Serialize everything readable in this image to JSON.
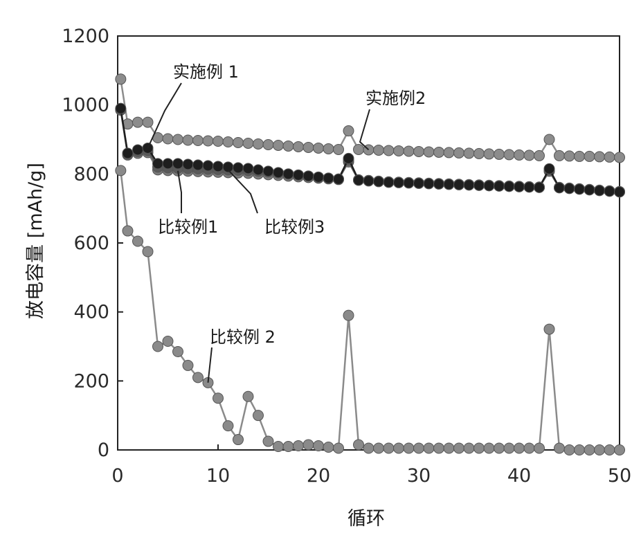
{
  "chart_data": {
    "type": "line",
    "xlabel": "循环",
    "ylabel": "放电容量 [mAh/g]",
    "xlim": [
      0,
      50
    ],
    "ylim": [
      0,
      1200
    ],
    "xticks": [
      "0",
      "10",
      "20",
      "30",
      "40",
      "50"
    ],
    "yticks": [
      "0",
      "200",
      "400",
      "600",
      "800",
      "1000",
      "1200"
    ],
    "grid": false,
    "legend": "none",
    "series": [
      {
        "name": "实施例 1",
        "color": "#1e1e1e",
        "x": [
          0.3,
          1,
          2,
          3,
          4,
          5,
          6,
          7,
          8,
          9,
          10,
          11,
          12,
          13,
          14,
          15,
          16,
          17,
          18,
          19,
          20,
          21,
          22,
          23,
          24,
          25,
          26,
          27,
          28,
          29,
          30,
          31,
          32,
          33,
          34,
          35,
          36,
          37,
          38,
          39,
          40,
          41,
          42,
          43,
          44,
          45,
          46,
          47,
          48,
          49,
          50
        ],
        "y": [
          990,
          860,
          870,
          875,
          830,
          830,
          830,
          828,
          826,
          824,
          822,
          820,
          818,
          816,
          812,
          808,
          804,
          800,
          797,
          794,
          791,
          788,
          785,
          845,
          782,
          780,
          778,
          776,
          775,
          774,
          773,
          772,
          771,
          770,
          769,
          768,
          767,
          766,
          765,
          764,
          763,
          762,
          761,
          815,
          760,
          758,
          756,
          754,
          752,
          750,
          748
        ]
      },
      {
        "name": "实施例2",
        "color": "#8c8c8c",
        "x": [
          0.3,
          1,
          2,
          3,
          4,
          5,
          6,
          7,
          8,
          9,
          10,
          11,
          12,
          13,
          14,
          15,
          16,
          17,
          18,
          19,
          20,
          21,
          22,
          23,
          24,
          25,
          26,
          27,
          28,
          29,
          30,
          31,
          32,
          33,
          34,
          35,
          36,
          37,
          38,
          39,
          40,
          41,
          42,
          43,
          44,
          45,
          46,
          47,
          48,
          49,
          50
        ],
        "y": [
          1075,
          945,
          950,
          950,
          905,
          902,
          900,
          898,
          897,
          896,
          895,
          893,
          891,
          889,
          887,
          885,
          883,
          881,
          879,
          877,
          875,
          873,
          871,
          925,
          871,
          870,
          869,
          868,
          867,
          866,
          865,
          864,
          863,
          862,
          861,
          860,
          859,
          858,
          857,
          856,
          855,
          854,
          853,
          900,
          853,
          852,
          851,
          851,
          850,
          849,
          848
        ]
      },
      {
        "name": "比较例1",
        "color": "#7a7a7a",
        "x": [
          0.3,
          1,
          2,
          3,
          4,
          5,
          6,
          7,
          8,
          9,
          10,
          11,
          12,
          13,
          14,
          15,
          16,
          17,
          18,
          19,
          20,
          21,
          22,
          23,
          24,
          25,
          26,
          27,
          28,
          29,
          30,
          31,
          32,
          33,
          34,
          35,
          36,
          37,
          38,
          39,
          40,
          41,
          42,
          43,
          44,
          45,
          46,
          47,
          48,
          49,
          50
        ],
        "y": [
          985,
          855,
          860,
          862,
          812,
          810,
          809,
          808,
          807,
          806,
          805,
          804,
          803,
          802,
          800,
          798,
          796,
          794,
          792,
          790,
          788,
          786,
          784,
          835,
          782,
          780,
          778,
          776,
          775,
          774,
          773,
          772,
          771,
          770,
          769,
          768,
          767,
          766,
          765,
          764,
          763,
          762,
          761,
          808,
          760,
          758,
          756,
          754,
          752,
          750,
          748
        ]
      },
      {
        "name": "比较例3",
        "color": "#5a5a5a",
        "x": [
          0.3,
          1,
          2,
          3,
          4,
          5,
          6,
          7,
          8,
          9,
          10,
          11,
          12,
          13,
          14,
          15,
          16,
          17,
          18,
          19,
          20,
          21,
          22,
          23,
          24,
          25,
          26,
          27,
          28,
          29,
          30,
          31,
          32,
          33,
          34,
          35,
          36,
          37,
          38,
          39,
          40,
          41,
          42,
          43,
          44,
          45,
          46,
          47,
          48,
          49,
          50
        ],
        "y": [
          988,
          858,
          865,
          868,
          820,
          818,
          817,
          816,
          815,
          814,
          813,
          812,
          811,
          810,
          808,
          806,
          803,
          800,
          797,
          794,
          791,
          788,
          785,
          840,
          783,
          781,
          779,
          777,
          776,
          775,
          774,
          773,
          772,
          771,
          770,
          769,
          768,
          767,
          766,
          765,
          764,
          763,
          762,
          812,
          761,
          759,
          757,
          755,
          753,
          751,
          749
        ]
      },
      {
        "name": "比较例 2",
        "color": "#8a8a8a",
        "x": [
          0.3,
          1,
          2,
          3,
          4,
          5,
          6,
          7,
          8,
          9,
          10,
          11,
          12,
          13,
          14,
          15,
          16,
          17,
          18,
          19,
          20,
          21,
          22,
          23,
          24,
          25,
          26,
          27,
          28,
          29,
          30,
          31,
          32,
          33,
          34,
          35,
          36,
          37,
          38,
          39,
          40,
          41,
          42,
          43,
          44,
          45,
          46,
          47,
          48,
          49,
          50
        ],
        "y": [
          810,
          635,
          605,
          575,
          300,
          315,
          285,
          245,
          210,
          195,
          150,
          70,
          30,
          155,
          100,
          25,
          10,
          10,
          12,
          15,
          12,
          8,
          5,
          390,
          15,
          5,
          5,
          5,
          5,
          5,
          5,
          5,
          5,
          5,
          5,
          5,
          5,
          5,
          5,
          5,
          5,
          5,
          5,
          350,
          5,
          0,
          0,
          0,
          0,
          0,
          0
        ]
      }
    ]
  }
}
